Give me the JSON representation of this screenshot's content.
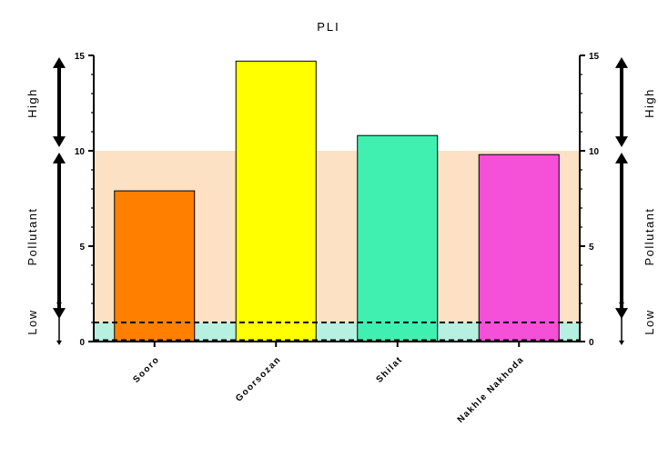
{
  "chart_data": {
    "type": "bar",
    "title": "PLI",
    "categories": [
      "Sooro",
      "Goorsozan",
      "Shilat",
      "Nakhle Nakhoda"
    ],
    "values": [
      7.9,
      14.7,
      10.8,
      9.8
    ],
    "ylim": [
      0,
      15
    ],
    "yticks": [
      "0",
      "5",
      "10",
      "15"
    ],
    "bar_colors": [
      "#ff7f00",
      "#ffff00",
      "#40f0b0",
      "#f550d8"
    ],
    "bands": [
      {
        "from": 0,
        "to": 1,
        "color": "#b5f0e0"
      },
      {
        "from": 1,
        "to": 10,
        "color": "#fde1c4"
      }
    ],
    "reference_lines": [
      0,
      1
    ],
    "zone_labels": [
      {
        "label": "Low",
        "from": 0,
        "to": 1
      },
      {
        "label": "Pollutant",
        "from": 1,
        "to": 10
      },
      {
        "label": "High",
        "from": 10,
        "to": 15
      }
    ],
    "grid": false,
    "axes": "left and right y axes"
  }
}
